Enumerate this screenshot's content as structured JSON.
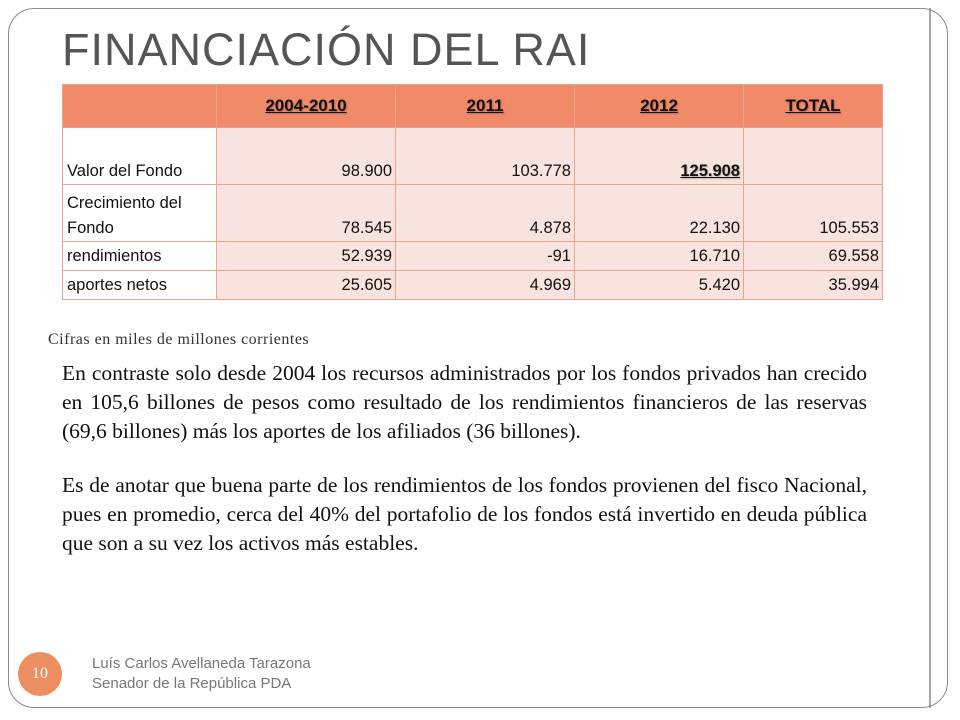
{
  "slide": {
    "title": "FINANCIACIÓN DEL RAI",
    "page_number": "10",
    "footer": {
      "line1": "Luís Carlos Avellaneda Tarazona",
      "line2": "Senador de la República PDA"
    }
  },
  "table": {
    "headers": [
      "",
      "2004-2010",
      "2011",
      "2012",
      "TOTAL"
    ],
    "rows": [
      {
        "label": "Valor del Fondo",
        "cells": [
          "98.900",
          "103.778",
          "125.908",
          ""
        ]
      },
      {
        "label": "Crecimiento del Fondo",
        "cells": [
          "78.545",
          "4.878",
          "22.130",
          "105.553"
        ]
      },
      {
        "label": "rendimientos",
        "cells": [
          "52.939",
          "-91",
          "16.710",
          "69.558"
        ]
      },
      {
        "label": "aportes netos",
        "cells": [
          "25.605",
          "4.969",
          "5.420",
          "35.994"
        ]
      }
    ]
  },
  "note": "Cifras en miles de millones corrientes",
  "paragraphs": [
    "En contraste solo desde 2004 los recursos administrados por los fondos privados han crecido en 105,6 billones de pesos como resultado de los rendimientos financieros de las reservas (69,6 billones) más los aportes de los afiliados (36 billones).",
    "Es de anotar que buena parte de los rendimientos de los fondos provienen del fisco Nacional, pues en promedio, cerca del 40% del portafolio de los fondos está invertido en deuda pública que son a su vez los activos más estables."
  ],
  "colors": {
    "header_fill": "#f08a68",
    "cell_fill": "#f9e3de",
    "badge": "#ec8d62",
    "title": "#555555"
  }
}
